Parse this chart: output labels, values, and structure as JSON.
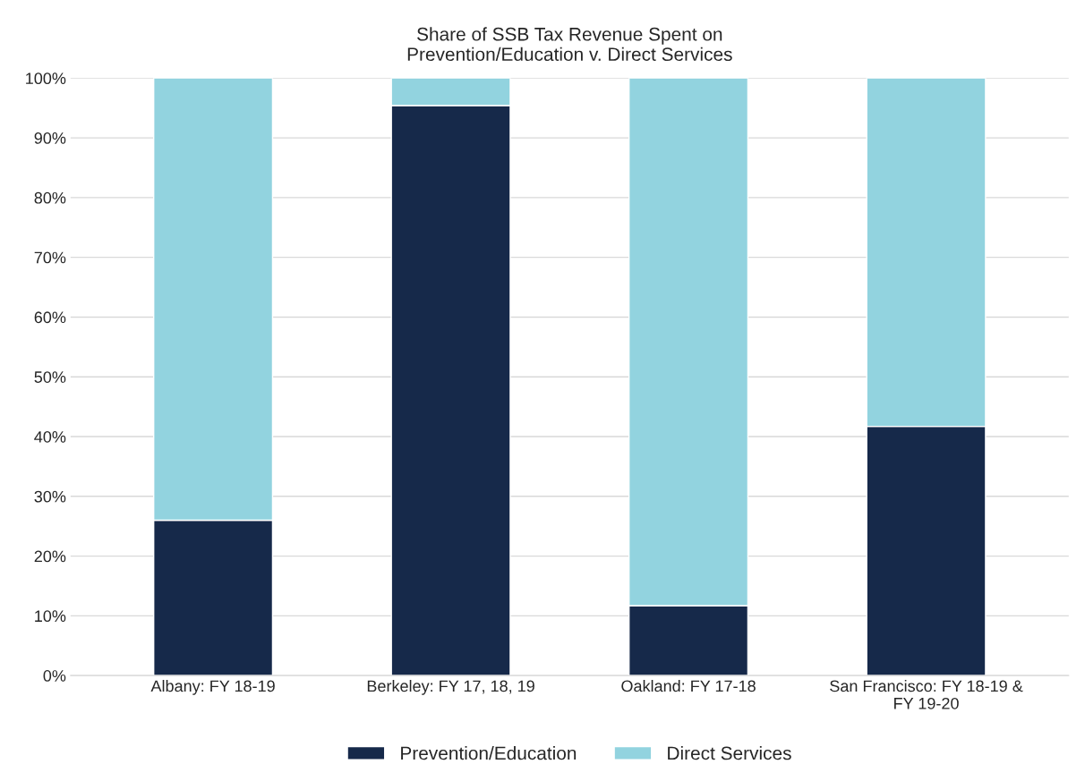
{
  "chart_data": {
    "type": "bar",
    "title": "Share of SSB Tax Revenue Spent on\nPrevention/Education v. Direct Services",
    "categories": [
      "Albany: FY 18-19",
      "Berkeley: FY 17, 18, 19",
      "Oakland: FY 17-18",
      "San Francisco: FY 18-19 &\nFY 19-20"
    ],
    "series": [
      {
        "name": "Prevention/Education",
        "color": "#16294a",
        "values": [
          26,
          95.4,
          11.7,
          41.7
        ]
      },
      {
        "name": "Direct Services",
        "color": "#92d3df",
        "values": [
          74,
          4.6,
          88.3,
          58.3
        ]
      }
    ],
    "stacked": true,
    "ylim": [
      0,
      100
    ],
    "yticks": [
      {
        "value": 0,
        "label": "0%"
      },
      {
        "value": 10,
        "label": "10%"
      },
      {
        "value": 20,
        "label": "20%"
      },
      {
        "value": 30,
        "label": "30%"
      },
      {
        "value": 40,
        "label": "40%"
      },
      {
        "value": 50,
        "label": "50%"
      },
      {
        "value": 60,
        "label": "60%"
      },
      {
        "value": 70,
        "label": "70%"
      },
      {
        "value": 80,
        "label": "80%"
      },
      {
        "value": 90,
        "label": "90%"
      },
      {
        "value": 100,
        "label": "100%"
      }
    ],
    "grid": "y",
    "legend": "bottom"
  }
}
